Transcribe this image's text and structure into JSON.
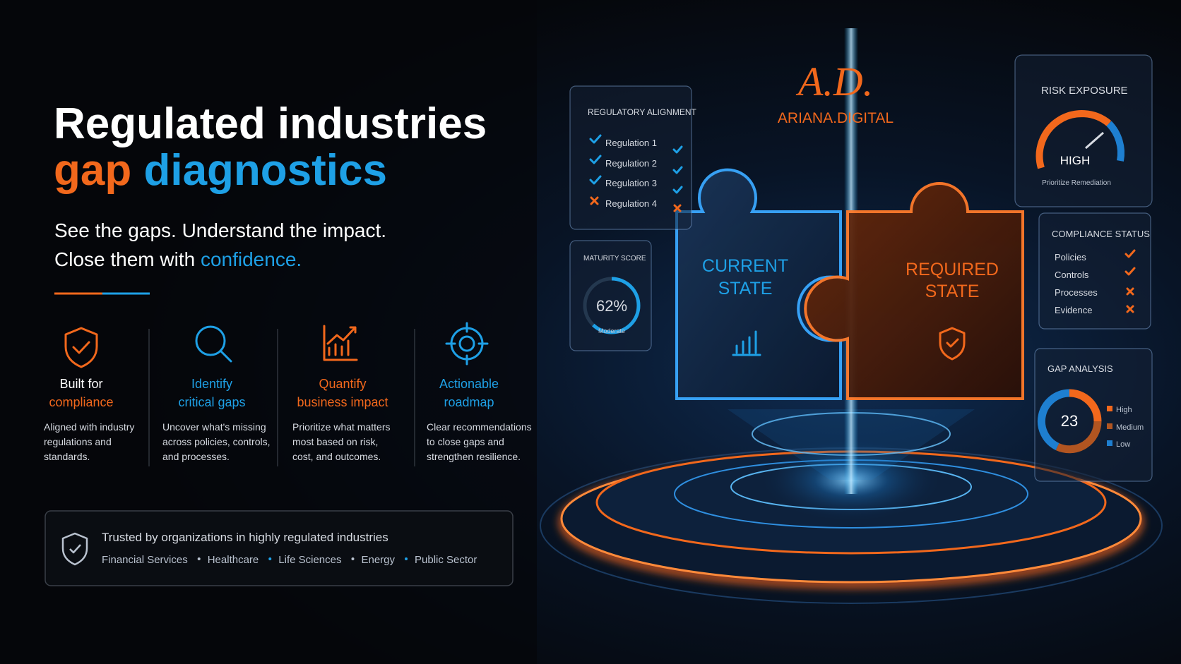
{
  "headline": {
    "line1": "Regulated industries",
    "line2a": "gap",
    "line2b": "diagnostics"
  },
  "subtitle": {
    "line1": "See the gaps. Understand the impact.",
    "line2a": "Close them with",
    "line2b": "confidence."
  },
  "features": [
    {
      "title": [
        "Built for",
        "compliance"
      ],
      "text": [
        "Aligned with industry",
        "regulations and",
        "standards."
      ]
    },
    {
      "title": [
        "Identify",
        "critical gaps"
      ],
      "text": [
        "Uncover what's missing",
        "across policies, controls,",
        "and processes."
      ]
    },
    {
      "title": [
        "Quantify",
        "business impact"
      ],
      "text": [
        "Prioritize what matters",
        "most based on risk,",
        "cost, and outcomes."
      ]
    },
    {
      "title": [
        "Actionable",
        "roadmap"
      ],
      "text": [
        "Clear recommendations",
        "to close gaps and",
        "strengthen resilience."
      ]
    }
  ],
  "trust": {
    "title": "Trusted by organizations in highly regulated industries",
    "industries": [
      "Financial Services",
      "Healthcare",
      "Life Sciences",
      "Energy",
      "Public Sector"
    ]
  },
  "logo": {
    "mark": "A.D.",
    "name": "ARIANA.DIGITAL"
  },
  "regulatory": {
    "title": "REGULATORY ALIGNMENT",
    "items": [
      "Regulation 1",
      "Regulation 2",
      "Regulation 3",
      "Regulation 4"
    ]
  },
  "maturity": {
    "title": "MATURITY SCORE",
    "value": 62,
    "value_label": "62%",
    "rating": "Moderate"
  },
  "risk": {
    "title": "RISK EXPOSURE",
    "level": "HIGH",
    "note": "Prioritize Remediation"
  },
  "compliance": {
    "title": "COMPLIANCE STATUS",
    "items": [
      "Policies",
      "Controls",
      "Processes",
      "Evidence"
    ]
  },
  "gap": {
    "title": "GAP ANALYSIS",
    "count": "23",
    "legend": [
      "High",
      "Medium",
      "Low"
    ]
  },
  "puzzle": {
    "current": [
      "CURRENT",
      "STATE"
    ],
    "required": [
      "REQUIRED",
      "STATE"
    ]
  }
}
